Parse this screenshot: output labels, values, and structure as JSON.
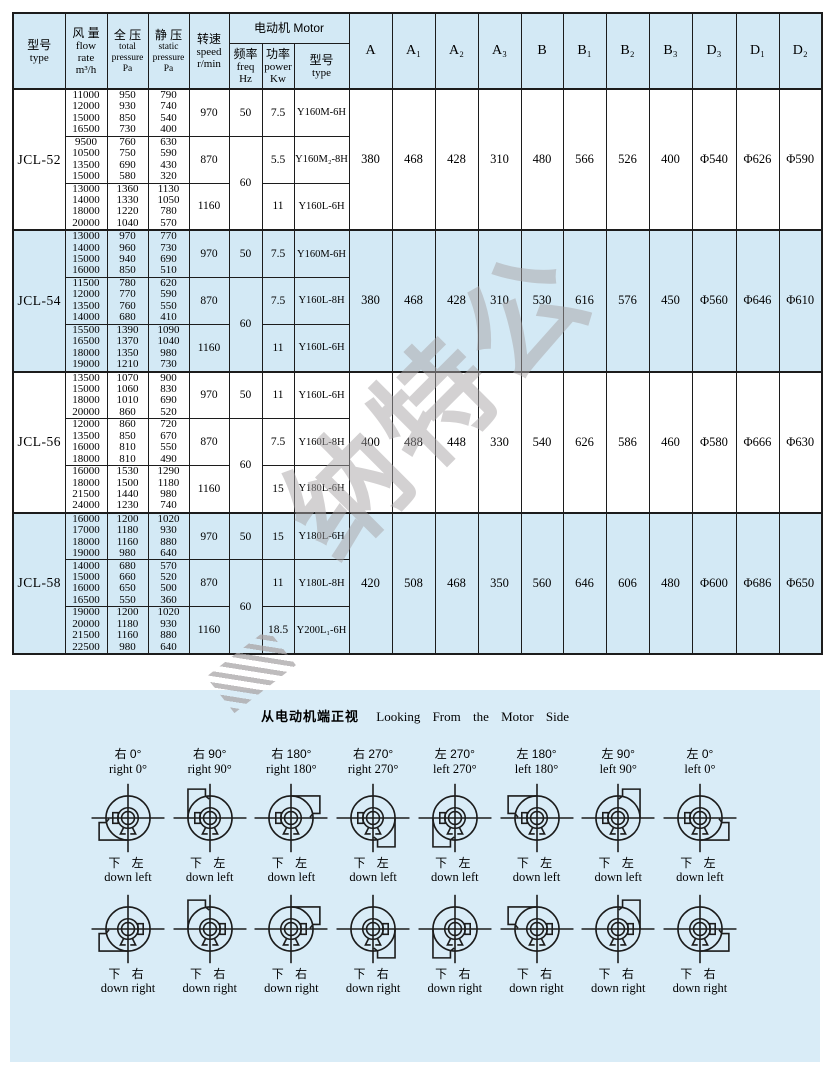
{
  "colors": {
    "table_blue": "#d3e9f5",
    "panel_blue": "#d9ecf7",
    "border": "#1c1c1c",
    "watermark_gray": "#a9a5a7"
  },
  "watermark": {
    "text": "纳特公"
  },
  "table": {
    "headers": {
      "type": [
        "型号",
        "type"
      ],
      "flow": [
        "风 量",
        "flow",
        "rate",
        "m³/h"
      ],
      "total": [
        "全 压",
        "total",
        "pressure",
        "Pa"
      ],
      "static": [
        "静 压",
        "static",
        "pressure",
        "Pa"
      ],
      "speed": [
        "转速",
        "speed",
        "r/min"
      ],
      "motor_group": "电动机 Motor",
      "freq": [
        "频率",
        "freq",
        "Hz"
      ],
      "power": [
        "功率",
        "power",
        "Kw"
      ],
      "motor_type": [
        "型号",
        "type"
      ],
      "dims": [
        "A",
        "A₁",
        "A₂",
        "A₃",
        "B",
        "B₁",
        "B₂",
        "B₃",
        "D₃",
        "D₁",
        "D₂"
      ]
    },
    "models": [
      {
        "name": "JCL-52",
        "shaded": false,
        "groups": [
          {
            "flow": [
              "11000",
              "12000",
              "15000",
              "16500"
            ],
            "total": [
              "950",
              "930",
              "850",
              "730"
            ],
            "static": [
              "790",
              "740",
              "540",
              "400"
            ],
            "speed": "970",
            "freq": "50",
            "freq_span": 1,
            "power": "7.5",
            "motor": "Y160M-6H"
          },
          {
            "flow": [
              "9500",
              "10500",
              "13500",
              "15000"
            ],
            "total": [
              "760",
              "750",
              "690",
              "580"
            ],
            "static": [
              "630",
              "590",
              "430",
              "320"
            ],
            "speed": "870",
            "freq": "60",
            "freq_span": 2,
            "power": "5.5",
            "motor": "Y160M₂-8H"
          },
          {
            "flow": [
              "13000",
              "14000",
              "18000",
              "20000"
            ],
            "total": [
              "1360",
              "1330",
              "1220",
              "1040"
            ],
            "static": [
              "1130",
              "1050",
              "780",
              "570"
            ],
            "speed": "1160",
            "power": "11",
            "motor": "Y160L-6H"
          }
        ],
        "dims": [
          "380",
          "468",
          "428",
          "310",
          "480",
          "566",
          "526",
          "400",
          "Φ540",
          "Φ626",
          "Φ590"
        ]
      },
      {
        "name": "JCL-54",
        "shaded": true,
        "groups": [
          {
            "flow": [
              "13000",
              "14000",
              "15000",
              "16000"
            ],
            "total": [
              "970",
              "960",
              "940",
              "850"
            ],
            "static": [
              "770",
              "730",
              "690",
              "510"
            ],
            "speed": "970",
            "freq": "50",
            "freq_span": 1,
            "power": "7.5",
            "motor": "Y160M-6H"
          },
          {
            "flow": [
              "11500",
              "12000",
              "13500",
              "14000"
            ],
            "total": [
              "780",
              "770",
              "760",
              "680"
            ],
            "static": [
              "620",
              "590",
              "550",
              "410"
            ],
            "speed": "870",
            "freq": "60",
            "freq_span": 2,
            "power": "7.5",
            "motor": "Y160L-8H"
          },
          {
            "flow": [
              "15500",
              "16500",
              "18000",
              "19000"
            ],
            "total": [
              "1390",
              "1370",
              "1350",
              "1210"
            ],
            "static": [
              "1090",
              "1040",
              "980",
              "730"
            ],
            "speed": "1160",
            "power": "11",
            "motor": "Y160L-6H"
          }
        ],
        "dims": [
          "380",
          "468",
          "428",
          "310",
          "530",
          "616",
          "576",
          "450",
          "Φ560",
          "Φ646",
          "Φ610"
        ]
      },
      {
        "name": "JCL-56",
        "shaded": false,
        "groups": [
          {
            "flow": [
              "13500",
              "15000",
              "18000",
              "20000"
            ],
            "total": [
              "1070",
              "1060",
              "1010",
              "860"
            ],
            "static": [
              "900",
              "830",
              "690",
              "520"
            ],
            "speed": "970",
            "freq": "50",
            "freq_span": 1,
            "power": "11",
            "motor": "Y160L-6H"
          },
          {
            "flow": [
              "12000",
              "13500",
              "16000",
              "18000"
            ],
            "total": [
              "860",
              "850",
              "810",
              "810"
            ],
            "static": [
              "720",
              "670",
              "550",
              "490"
            ],
            "speed": "870",
            "freq": "60",
            "freq_span": 2,
            "power": "7.5",
            "motor": "Y160L-8H"
          },
          {
            "flow": [
              "16000",
              "18000",
              "21500",
              "24000"
            ],
            "total": [
              "1530",
              "1500",
              "1440",
              "1230"
            ],
            "static": [
              "1290",
              "1180",
              "980",
              "740"
            ],
            "speed": "1160",
            "power": "15",
            "motor": "Y180L-6H"
          }
        ],
        "dims": [
          "400",
          "488",
          "448",
          "330",
          "540",
          "626",
          "586",
          "460",
          "Φ580",
          "Φ666",
          "Φ630"
        ]
      },
      {
        "name": "JCL-58",
        "shaded": true,
        "groups": [
          {
            "flow": [
              "16000",
              "17000",
              "18000",
              "19000"
            ],
            "total": [
              "1200",
              "1180",
              "1160",
              "980"
            ],
            "static": [
              "1020",
              "930",
              "880",
              "640"
            ],
            "speed": "970",
            "freq": "50",
            "freq_span": 1,
            "power": "15",
            "motor": "Y180L-6H"
          },
          {
            "flow": [
              "14000",
              "15000",
              "16000",
              "16500"
            ],
            "total": [
              "680",
              "660",
              "650",
              "550"
            ],
            "static": [
              "570",
              "520",
              "500",
              "360"
            ],
            "speed": "870",
            "freq": "60",
            "freq_span": 2,
            "power": "11",
            "motor": "Y180L-8H"
          },
          {
            "flow": [
              "19000",
              "20000",
              "21500",
              "22500"
            ],
            "total": [
              "1200",
              "1180",
              "1160",
              "980"
            ],
            "static": [
              "1020",
              "930",
              "880",
              "640"
            ],
            "speed": "1160",
            "power": "18.5",
            "motor": "Y200L₁-6H"
          }
        ],
        "dims": [
          "420",
          "508",
          "468",
          "350",
          "560",
          "646",
          "606",
          "480",
          "Φ600",
          "Φ686",
          "Φ650"
        ]
      }
    ]
  },
  "diagram": {
    "title_cn": "从电动机端正视",
    "title_en": "Looking From the Motor Side",
    "columns": [
      {
        "cn": "右  0°",
        "en": "right 0°"
      },
      {
        "cn": "右  90°",
        "en": "right 90°"
      },
      {
        "cn": "右  180°",
        "en": "right 180°"
      },
      {
        "cn": "右  270°",
        "en": "right 270°"
      },
      {
        "cn": "左  270°",
        "en": "left 270°"
      },
      {
        "cn": "左  180°",
        "en": "left 180°"
      },
      {
        "cn": "左  90°",
        "en": "left 90°"
      },
      {
        "cn": "左  0°",
        "en": "left 0°"
      }
    ],
    "row1_label": {
      "cn": "下 左",
      "en": "down left"
    },
    "row2_label": {
      "cn": "下 右",
      "en": "down right"
    }
  }
}
